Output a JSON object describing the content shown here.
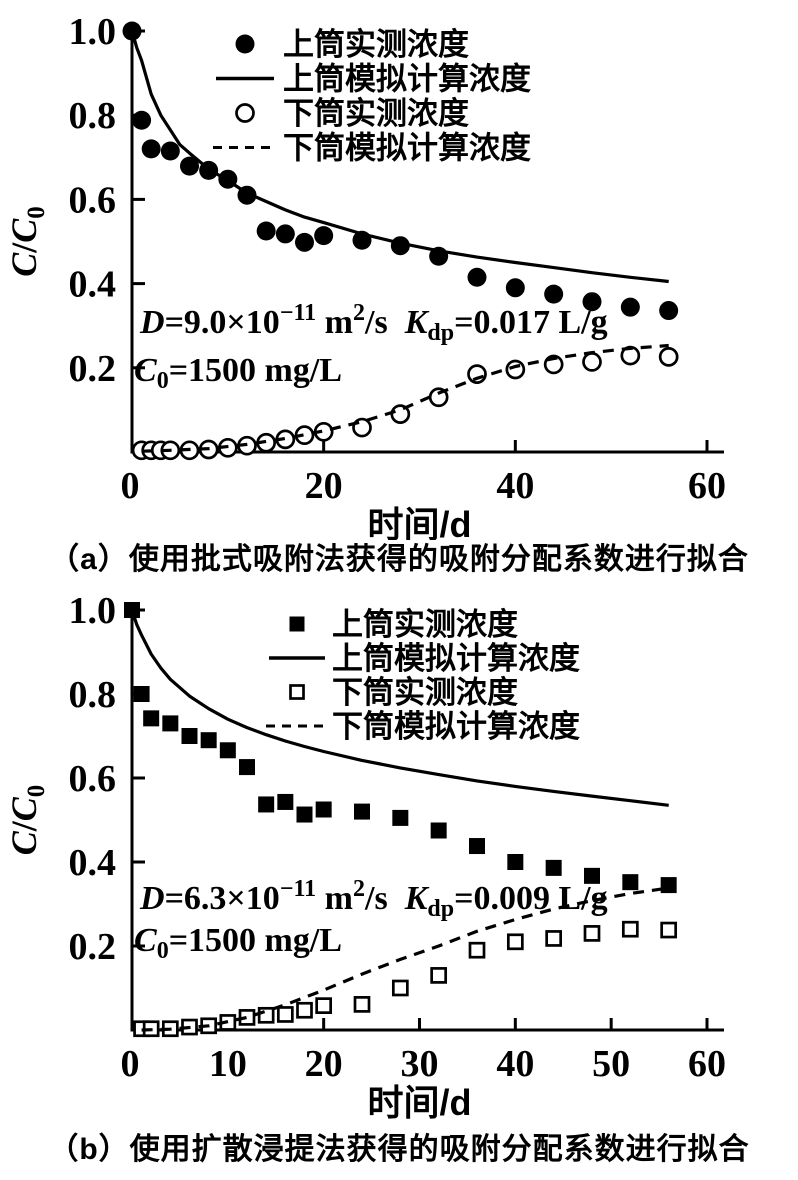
{
  "colors": {
    "ink": "#000000",
    "background": "#ffffff"
  },
  "chart_data": [
    {
      "id": "a",
      "type": "scatter",
      "caption": "（a）使用批式吸附法获得的吸附分配系数进行拟合",
      "xlabel": "时间/d",
      "ylabel_segments": [
        {
          "t": "C",
          "style": "italic"
        },
        {
          "t": "/",
          "style": "normal"
        },
        {
          "t": "C",
          "style": "italic"
        },
        {
          "t": "0",
          "style": "sub"
        }
      ],
      "xlim": [
        0,
        60
      ],
      "ylim": [
        0,
        1.0
      ],
      "grid": false,
      "legend_position": "top-inside",
      "xticks": [
        {
          "v": 0,
          "label": "0"
        },
        {
          "v": 20,
          "label": "20"
        },
        {
          "v": 40,
          "label": "40"
        },
        {
          "v": 60,
          "label": "60"
        }
      ],
      "yticks": [
        {
          "v": 1.0,
          "label": "1.0"
        },
        {
          "v": 0.8,
          "label": "0.8"
        },
        {
          "v": 0.6,
          "label": "0.6"
        },
        {
          "v": 0.4,
          "label": "0.4"
        },
        {
          "v": 0.2,
          "label": "0.2"
        }
      ],
      "legend": [
        {
          "marker": "filled-circle",
          "label": "上筒实测浓度"
        },
        {
          "marker": "solid-line",
          "label": "上筒模拟计算浓度"
        },
        {
          "marker": "open-circle",
          "label": "下筒实测浓度"
        },
        {
          "marker": "dashed-line",
          "label": "下筒模拟计算浓度"
        }
      ],
      "annotations": [
        {
          "segments": [
            {
              "t": "D",
              "style": "italic"
            },
            {
              "t": "=9.0×10",
              "style": "normal"
            },
            {
              "t": "−11",
              "style": "sup"
            },
            {
              "t": " m",
              "style": "normal"
            },
            {
              "t": "2",
              "style": "sup"
            },
            {
              "t": "/s  ",
              "style": "normal"
            },
            {
              "t": "K",
              "style": "italic"
            },
            {
              "t": "dp",
              "style": "sub"
            },
            {
              "t": "=0.017 L/g",
              "style": "normal"
            }
          ]
        },
        {
          "segments": [
            {
              "t": "C",
              "style": "italic"
            },
            {
              "t": "0",
              "style": "sub"
            },
            {
              "t": "=1500 mg/L",
              "style": "normal"
            }
          ]
        }
      ],
      "series": [
        {
          "name": "上筒实测浓度",
          "style": "scatter",
          "marker": "filled-circle",
          "x": [
            0,
            1,
            2,
            4,
            6,
            8,
            10,
            12,
            14,
            16,
            18,
            20,
            24,
            28,
            32,
            36,
            40,
            44,
            48,
            52,
            56
          ],
          "y": [
            1.0,
            0.788,
            0.72,
            0.715,
            0.679,
            0.669,
            0.648,
            0.61,
            0.525,
            0.518,
            0.498,
            0.514,
            0.503,
            0.49,
            0.465,
            0.415,
            0.39,
            0.375,
            0.357,
            0.344,
            0.336
          ]
        },
        {
          "name": "上筒模拟计算浓度",
          "style": "line",
          "dashed": false,
          "x": [
            0,
            0.5,
            1,
            2,
            3,
            4,
            5,
            6,
            8,
            10,
            12,
            14,
            16,
            18,
            20,
            24,
            28,
            32,
            36,
            40,
            44,
            48,
            52,
            56
          ],
          "y": [
            1.0,
            0.96,
            0.93,
            0.85,
            0.8,
            0.765,
            0.73,
            0.71,
            0.672,
            0.645,
            0.615,
            0.595,
            0.575,
            0.558,
            0.545,
            0.518,
            0.496,
            0.478,
            0.463,
            0.45,
            0.438,
            0.426,
            0.415,
            0.405
          ]
        },
        {
          "name": "下筒实测浓度",
          "style": "scatter",
          "marker": "open-circle",
          "x": [
            1,
            2,
            3,
            4,
            6,
            8,
            10,
            12,
            14,
            16,
            18,
            20,
            24,
            28,
            32,
            36,
            40,
            44,
            48,
            52,
            56
          ],
          "y": [
            0.004,
            0.004,
            0.004,
            0.004,
            0.004,
            0.006,
            0.01,
            0.015,
            0.022,
            0.03,
            0.04,
            0.048,
            0.058,
            0.09,
            0.13,
            0.185,
            0.196,
            0.208,
            0.214,
            0.229,
            0.226
          ]
        },
        {
          "name": "下筒模拟计算浓度",
          "style": "line",
          "dashed": true,
          "x": [
            1,
            4,
            8,
            12,
            16,
            20,
            24,
            28,
            32,
            36,
            40,
            44,
            48,
            52,
            56
          ],
          "y": [
            0.002,
            0.004,
            0.008,
            0.018,
            0.032,
            0.05,
            0.072,
            0.1,
            0.14,
            0.175,
            0.203,
            0.222,
            0.236,
            0.246,
            0.253
          ]
        }
      ]
    },
    {
      "id": "b",
      "type": "scatter",
      "caption": "（b）使用扩散浸提法获得的吸附分配系数进行拟合",
      "xlabel": "时间/d",
      "ylabel_segments": [
        {
          "t": "C",
          "style": "italic"
        },
        {
          "t": "/",
          "style": "normal"
        },
        {
          "t": "C",
          "style": "italic"
        },
        {
          "t": "0",
          "style": "sub"
        }
      ],
      "xlim": [
        0,
        60
      ],
      "ylim": [
        0,
        1.0
      ],
      "grid": false,
      "legend_position": "top-inside",
      "xticks": [
        {
          "v": 0,
          "label": "0"
        },
        {
          "v": 10,
          "label": "10"
        },
        {
          "v": 20,
          "label": "20"
        },
        {
          "v": 30,
          "label": "30"
        },
        {
          "v": 40,
          "label": "40"
        },
        {
          "v": 50,
          "label": "50"
        },
        {
          "v": 60,
          "label": "60"
        }
      ],
      "yticks": [
        {
          "v": 1.0,
          "label": "1.0"
        },
        {
          "v": 0.8,
          "label": "0.8"
        },
        {
          "v": 0.6,
          "label": "0.6"
        },
        {
          "v": 0.4,
          "label": "0.4"
        },
        {
          "v": 0.2,
          "label": "0.2"
        }
      ],
      "legend": [
        {
          "marker": "filled-square",
          "label": "上筒实测浓度"
        },
        {
          "marker": "solid-line",
          "label": "上筒模拟计算浓度"
        },
        {
          "marker": "open-square",
          "label": "下筒实测浓度"
        },
        {
          "marker": "dashed-line",
          "label": "下筒模拟计算浓度"
        }
      ],
      "annotations": [
        {
          "segments": [
            {
              "t": "D",
              "style": "italic"
            },
            {
              "t": "=6.3×10",
              "style": "normal"
            },
            {
              "t": "−11",
              "style": "sup"
            },
            {
              "t": " m",
              "style": "normal"
            },
            {
              "t": "2",
              "style": "sup"
            },
            {
              "t": "/s  ",
              "style": "normal"
            },
            {
              "t": "K",
              "style": "italic"
            },
            {
              "t": "dp",
              "style": "sub"
            },
            {
              "t": "=0.009 L/g",
              "style": "normal"
            }
          ]
        },
        {
          "segments": [
            {
              "t": "C",
              "style": "italic"
            },
            {
              "t": "0",
              "style": "sub"
            },
            {
              "t": "=1500 mg/L",
              "style": "normal"
            }
          ]
        }
      ],
      "series": [
        {
          "name": "上筒实测浓度",
          "style": "scatter",
          "marker": "filled-square",
          "x": [
            0,
            1,
            2,
            4,
            6,
            8,
            10,
            12,
            14,
            16,
            18,
            20,
            24,
            28,
            32,
            36,
            40,
            44,
            48,
            52,
            56
          ],
          "y": [
            1.0,
            0.8,
            0.742,
            0.73,
            0.7,
            0.69,
            0.666,
            0.626,
            0.537,
            0.543,
            0.513,
            0.525,
            0.52,
            0.505,
            0.475,
            0.438,
            0.4,
            0.386,
            0.367,
            0.352,
            0.345
          ]
        },
        {
          "name": "上筒模拟计算浓度",
          "style": "line",
          "dashed": false,
          "x": [
            0,
            0.5,
            1,
            2,
            3,
            4,
            6,
            8,
            10,
            12,
            14,
            16,
            18,
            20,
            24,
            28,
            32,
            36,
            40,
            44,
            48,
            52,
            56
          ],
          "y": [
            1.0,
            0.965,
            0.94,
            0.895,
            0.862,
            0.835,
            0.795,
            0.765,
            0.74,
            0.72,
            0.703,
            0.688,
            0.675,
            0.663,
            0.642,
            0.624,
            0.608,
            0.593,
            0.58,
            0.568,
            0.557,
            0.546,
            0.535
          ]
        },
        {
          "name": "下筒实测浓度",
          "style": "scatter",
          "marker": "open-square",
          "x": [
            1,
            2,
            4,
            6,
            8,
            10,
            12,
            14,
            16,
            18,
            20,
            24,
            28,
            32,
            36,
            40,
            44,
            48,
            52,
            56
          ],
          "y": [
            0.003,
            0.003,
            0.003,
            0.007,
            0.01,
            0.018,
            0.03,
            0.035,
            0.037,
            0.047,
            0.058,
            0.061,
            0.1,
            0.13,
            0.19,
            0.21,
            0.218,
            0.23,
            0.24,
            0.238
          ]
        },
        {
          "name": "下筒模拟计算浓度",
          "style": "line",
          "dashed": true,
          "x": [
            1,
            4,
            8,
            12,
            16,
            20,
            24,
            28,
            32,
            36,
            40,
            44,
            48,
            52,
            56
          ],
          "y": [
            0.0,
            0.002,
            0.01,
            0.03,
            0.06,
            0.095,
            0.133,
            0.168,
            0.2,
            0.235,
            0.263,
            0.288,
            0.308,
            0.325,
            0.338
          ]
        }
      ]
    }
  ]
}
